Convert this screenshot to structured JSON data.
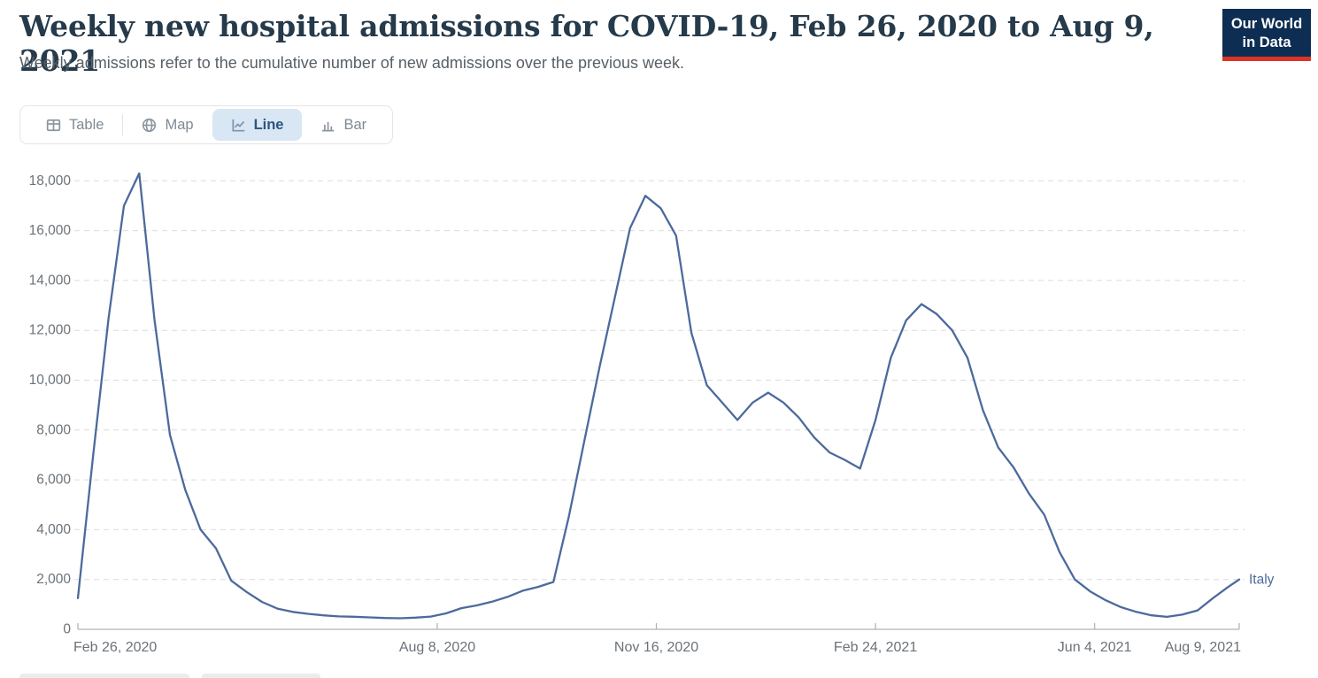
{
  "header": {
    "title": "Weekly new hospital admissions for COVID-19, Feb 26, 2020 to Aug 9, 2021",
    "subtitle": "Weekly admissions refer to the cumulative number of new admissions over the previous week.",
    "logo_line1": "Our World",
    "logo_line2": "in Data"
  },
  "tabs": [
    {
      "id": "table",
      "label": "Table",
      "icon": "table-icon",
      "active": false
    },
    {
      "id": "map",
      "label": "Map",
      "icon": "globe-icon",
      "active": false
    },
    {
      "id": "line",
      "label": "Line",
      "icon": "line-chart-icon",
      "active": true
    },
    {
      "id": "bar",
      "label": "Bar",
      "icon": "bar-chart-icon",
      "active": false
    }
  ],
  "colors": {
    "title": "#253a4b",
    "subtitle": "#575f66",
    "series_italy": "#4c6a9c",
    "active_tab_bg": "#d9e6f4",
    "active_tab_text": "#2c567d",
    "inactive_tab_text": "#7f8a93",
    "gridline": "#dbdbdb",
    "axis": "#b3b3b3",
    "tick_label": "#6b7278",
    "logo_bg": "#0d2d52",
    "logo_red": "#dc3326"
  },
  "chart_data": {
    "type": "line",
    "title": "Weekly new hospital admissions for COVID-19, Feb 26, 2020 to Aug 9, 2021",
    "subtitle": "Weekly admissions refer to the cumulative number of new admissions over the previous week.",
    "grid": "horizontal-dashed",
    "legend_position": "end-of-line-label",
    "xlim": [
      "2020-02-26",
      "2021-08-09"
    ],
    "ylim": [
      0,
      18000
    ],
    "y_ticks": [
      0,
      2000,
      4000,
      6000,
      8000,
      10000,
      12000,
      14000,
      16000,
      18000
    ],
    "x_ticks": [
      {
        "label": "Feb 26, 2020",
        "date": "2020-02-26"
      },
      {
        "label": "Aug 8, 2020",
        "date": "2020-08-08"
      },
      {
        "label": "Nov 16, 2020",
        "date": "2020-11-16"
      },
      {
        "label": "Feb 24, 2021",
        "date": "2021-02-24"
      },
      {
        "label": "Jun 4, 2021",
        "date": "2021-06-04"
      },
      {
        "label": "Aug 9, 2021",
        "date": "2021-08-09"
      }
    ],
    "series": [
      {
        "name": "Italy",
        "color": "#4c6a9c",
        "points": [
          [
            "2020-02-26",
            1250
          ],
          [
            "2020-03-04",
            7000
          ],
          [
            "2020-03-11",
            12500
          ],
          [
            "2020-03-18",
            17000
          ],
          [
            "2020-03-25",
            18300
          ],
          [
            "2020-04-01",
            12400
          ],
          [
            "2020-04-08",
            7800
          ],
          [
            "2020-04-15",
            5600
          ],
          [
            "2020-04-22",
            4000
          ],
          [
            "2020-04-29",
            3250
          ],
          [
            "2020-05-06",
            1950
          ],
          [
            "2020-05-13",
            1500
          ],
          [
            "2020-05-20",
            1100
          ],
          [
            "2020-05-27",
            830
          ],
          [
            "2020-06-03",
            700
          ],
          [
            "2020-06-10",
            620
          ],
          [
            "2020-06-17",
            560
          ],
          [
            "2020-06-24",
            520
          ],
          [
            "2020-07-01",
            505
          ],
          [
            "2020-07-08",
            480
          ],
          [
            "2020-07-15",
            455
          ],
          [
            "2020-07-22",
            445
          ],
          [
            "2020-07-29",
            470
          ],
          [
            "2020-08-05",
            510
          ],
          [
            "2020-08-12",
            640
          ],
          [
            "2020-08-19",
            850
          ],
          [
            "2020-08-26",
            960
          ],
          [
            "2020-09-02",
            1110
          ],
          [
            "2020-09-09",
            1300
          ],
          [
            "2020-09-16",
            1550
          ],
          [
            "2020-09-23",
            1700
          ],
          [
            "2020-09-30",
            1900
          ],
          [
            "2020-10-07",
            4500
          ],
          [
            "2020-10-14",
            7500
          ],
          [
            "2020-10-21",
            10500
          ],
          [
            "2020-10-28",
            13300
          ],
          [
            "2020-11-04",
            16100
          ],
          [
            "2020-11-11",
            17400
          ],
          [
            "2020-11-18",
            16900
          ],
          [
            "2020-11-25",
            15800
          ],
          [
            "2020-12-02",
            11900
          ],
          [
            "2020-12-09",
            9800
          ],
          [
            "2020-12-16",
            9100
          ],
          [
            "2020-12-23",
            8400
          ],
          [
            "2020-12-30",
            9100
          ],
          [
            "2021-01-06",
            9500
          ],
          [
            "2021-01-13",
            9100
          ],
          [
            "2021-01-20",
            8500
          ],
          [
            "2021-01-27",
            7700
          ],
          [
            "2021-02-03",
            7100
          ],
          [
            "2021-02-10",
            6800
          ],
          [
            "2021-02-17",
            6450
          ],
          [
            "2021-02-24",
            8400
          ],
          [
            "2021-03-03",
            10900
          ],
          [
            "2021-03-10",
            12400
          ],
          [
            "2021-03-17",
            13050
          ],
          [
            "2021-03-24",
            12650
          ],
          [
            "2021-03-31",
            12000
          ],
          [
            "2021-04-07",
            10900
          ],
          [
            "2021-04-14",
            8800
          ],
          [
            "2021-04-21",
            7300
          ],
          [
            "2021-04-28",
            6500
          ],
          [
            "2021-05-05",
            5450
          ],
          [
            "2021-05-12",
            4600
          ],
          [
            "2021-05-19",
            3100
          ],
          [
            "2021-05-26",
            2000
          ],
          [
            "2021-06-02",
            1520
          ],
          [
            "2021-06-09",
            1170
          ],
          [
            "2021-06-16",
            890
          ],
          [
            "2021-06-23",
            700
          ],
          [
            "2021-06-30",
            560
          ],
          [
            "2021-07-07",
            500
          ],
          [
            "2021-07-14",
            590
          ],
          [
            "2021-07-21",
            760
          ],
          [
            "2021-07-28",
            1250
          ],
          [
            "2021-08-04",
            1700
          ],
          [
            "2021-08-09",
            2000
          ]
        ]
      }
    ]
  }
}
